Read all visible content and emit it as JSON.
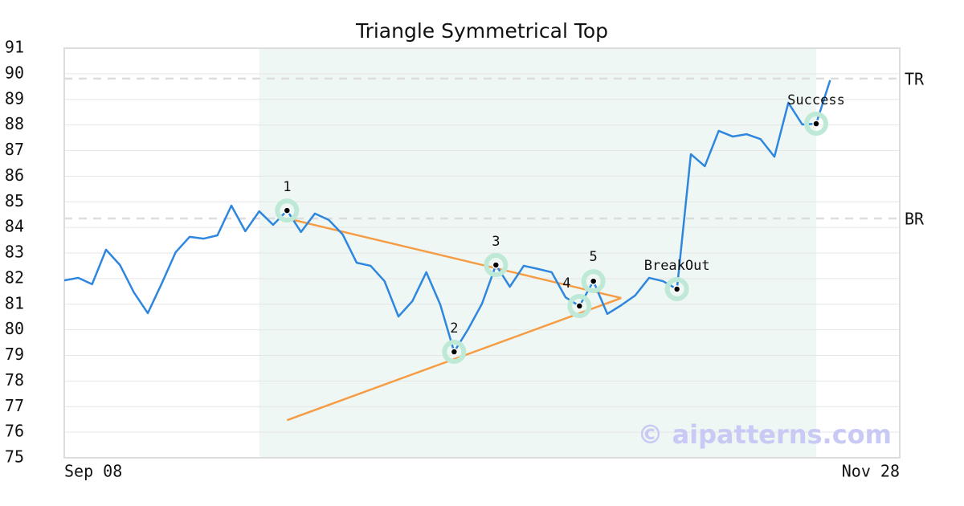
{
  "chart_data": {
    "type": "line",
    "title": "Triangle Symmetrical Top",
    "categories": [
      "Sep 08",
      null,
      null,
      null,
      null,
      null,
      null,
      null,
      null,
      null,
      null,
      null,
      null,
      null,
      null,
      null,
      null,
      null,
      null,
      null,
      null,
      null,
      null,
      null,
      null,
      null,
      null,
      null,
      null,
      null,
      null,
      null,
      null,
      null,
      null,
      null,
      null,
      null,
      null,
      null,
      null,
      null,
      null,
      null,
      null,
      null,
      null,
      null,
      null,
      null,
      null,
      null,
      null,
      null,
      null,
      null,
      null,
      null,
      null,
      null,
      "Nov 28"
    ],
    "values": [
      81.93,
      82.03,
      81.78,
      83.13,
      82.53,
      81.46,
      80.65,
      81.81,
      83.03,
      83.63,
      83.56,
      83.69,
      84.85,
      83.85,
      84.63,
      84.1,
      84.66,
      83.82,
      84.54,
      84.29,
      83.72,
      82.62,
      82.5,
      81.9,
      80.52,
      81.12,
      82.25,
      80.99,
      79.14,
      80.02,
      81.02,
      82.53,
      81.68,
      82.5,
      82.38,
      82.25,
      81.27,
      80.93,
      81.9,
      80.62,
      80.96,
      81.34,
      82.03,
      81.9,
      81.59,
      86.86,
      86.39,
      87.77,
      87.55,
      87.64,
      87.45,
      86.76,
      88.87,
      88.02,
      88.05,
      89.75,
      null,
      null,
      null,
      null,
      null
    ],
    "color": "#2e86de",
    "ylim": [
      75,
      91
    ],
    "yticks": [
      75,
      76,
      77,
      78,
      79,
      80,
      81,
      82,
      83,
      84,
      85,
      86,
      87,
      88,
      89,
      90,
      91
    ],
    "grid": true,
    "highlight_range": [
      14,
      54
    ],
    "levels": [
      {
        "label": "TR",
        "value": 89.81
      },
      {
        "label": "BR",
        "value": 84.35
      }
    ],
    "annotations": [
      {
        "label": "1",
        "x": 16,
        "value": 84.66
      },
      {
        "label": "2",
        "x": 28,
        "value": 79.14
      },
      {
        "label": "3",
        "x": 31,
        "value": 82.53
      },
      {
        "label": "4",
        "x": 37,
        "value": 80.93
      },
      {
        "label": "5",
        "x": 38,
        "value": 81.9
      },
      {
        "label": "BreakOut",
        "x": 44,
        "value": 81.59
      },
      {
        "label": "Success",
        "x": 54,
        "value": 88.05
      }
    ],
    "trend_lines": [
      {
        "x": [
          16,
          40
        ],
        "y": [
          84.35,
          81.24
        ]
      },
      {
        "x": [
          16,
          40
        ],
        "y": [
          76.47,
          81.24
        ]
      }
    ],
    "watermark": "© aipatterns.com"
  }
}
